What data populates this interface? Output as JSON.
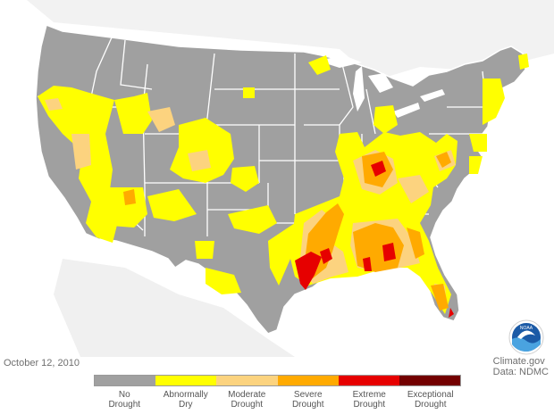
{
  "date": "October 12, 2010",
  "credit": {
    "line1": "Climate.gov",
    "line2": "Data: NDMC"
  },
  "logo": {
    "text": "NOAA",
    "icon": "noaa-logo-icon"
  },
  "colors": {
    "background_land": "#ffffff",
    "no_drought": "#a0a0a0",
    "abnormally_dry": "#ffff00",
    "moderate_drought": "#fcd37f",
    "severe_drought": "#ffaa00",
    "extreme_drought": "#e60000",
    "exceptional_drought": "#730000",
    "state_borders": "#ffffff"
  },
  "legend": [
    {
      "label": "No\nDrought",
      "color": "#a0a0a0"
    },
    {
      "label": "Abnormally\nDry",
      "color": "#ffff00"
    },
    {
      "label": "Moderate\nDrought",
      "color": "#fcd37f"
    },
    {
      "label": "Severe\nDrought",
      "color": "#ffaa00"
    },
    {
      "label": "Extreme\nDrought",
      "color": "#e60000"
    },
    {
      "label": "Exceptional\nDrought",
      "color": "#730000"
    }
  ]
}
